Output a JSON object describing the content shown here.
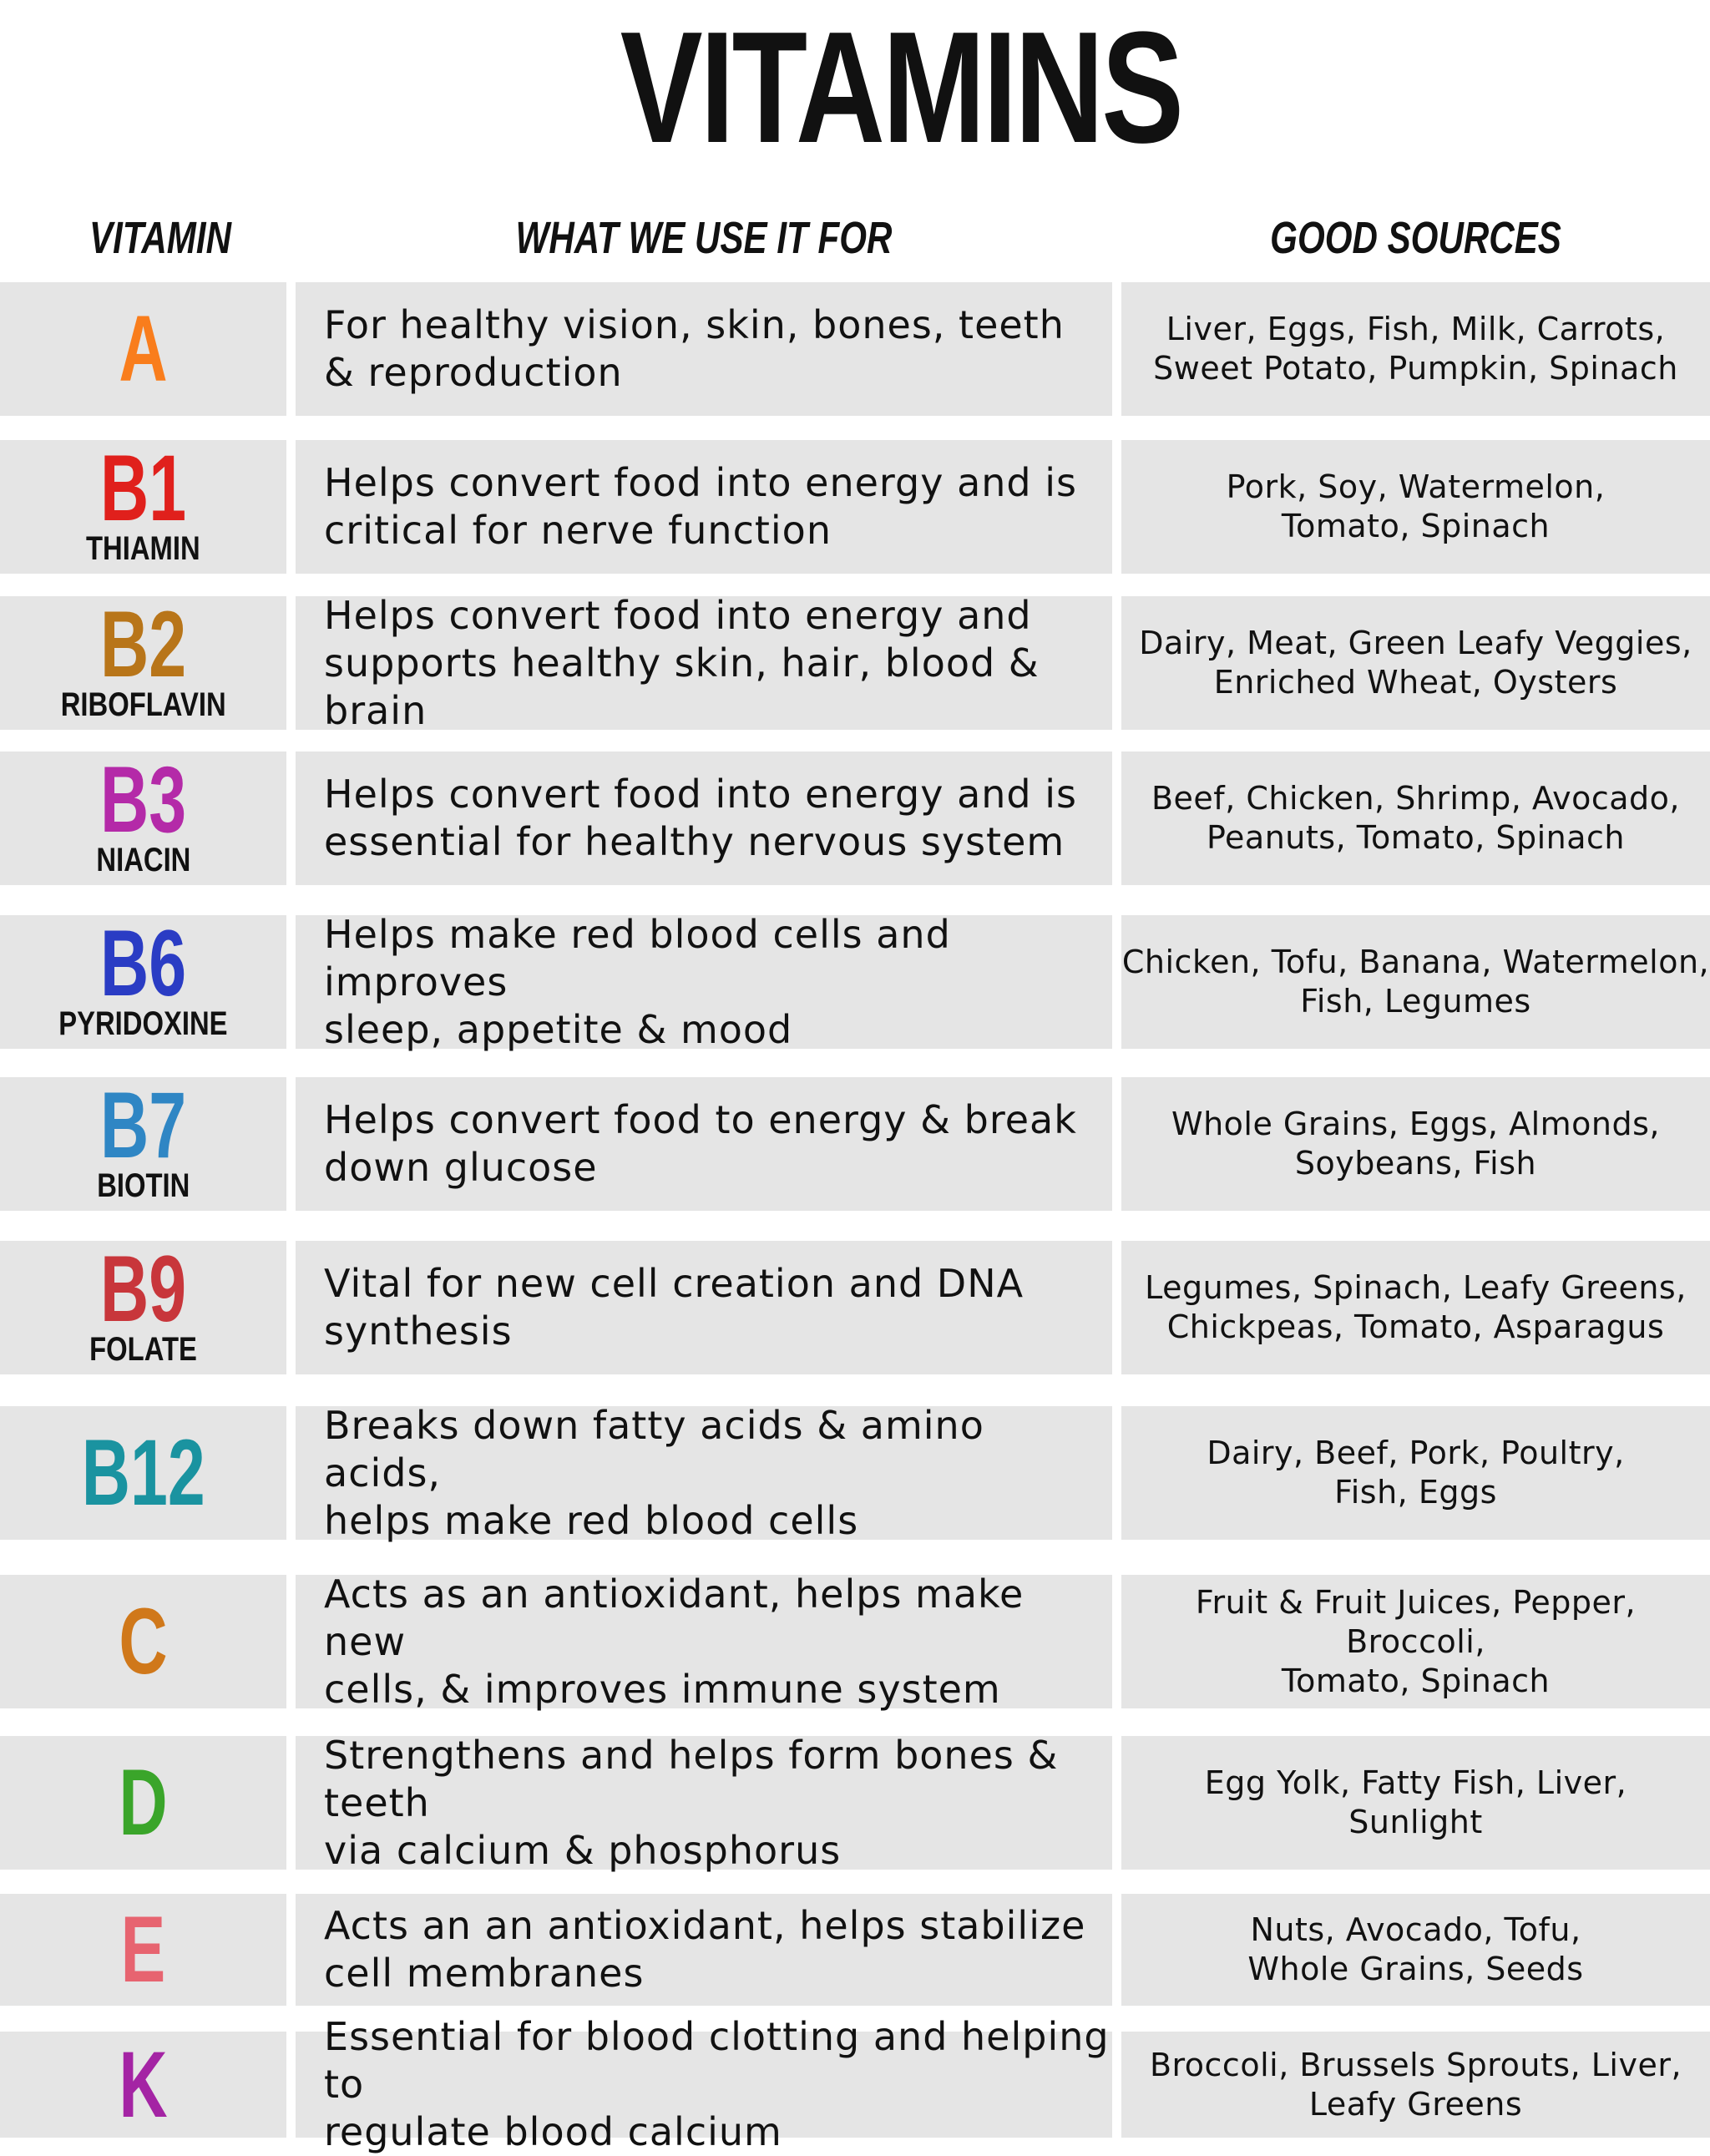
{
  "title": "VITAMINS",
  "headers": {
    "vitamin": "VITAMIN",
    "use": "WHAT WE USE IT FOR",
    "sources": "GOOD SOURCES"
  },
  "rows": [
    {
      "letter": "A",
      "name": "",
      "color": "#f97d1c",
      "use": [
        "For healthy vision, skin, bones, teeth",
        "& reproduction"
      ],
      "sources": [
        "Liver, Eggs, Fish, Milk, Carrots,",
        "Sweet Potato, Pumpkin, Spinach"
      ]
    },
    {
      "letter": "B1",
      "name": "THIAMIN",
      "color": "#e0201c",
      "use": [
        "Helps convert food into energy and is",
        "critical for nerve function"
      ],
      "sources": [
        "Pork, Soy, Watermelon,",
        "Tomato, Spinach"
      ]
    },
    {
      "letter": "B2",
      "name": "RIBOFLAVIN",
      "color": "#b87519",
      "use": [
        "Helps convert food into energy and",
        "supports healthy skin, hair, blood & brain"
      ],
      "sources": [
        "Dairy, Meat, Green Leafy Veggies,",
        "Enriched Wheat, Oysters"
      ]
    },
    {
      "letter": "B3",
      "name": "NIACIN",
      "color": "#b42aa8",
      "use": [
        "Helps convert food into energy and is",
        "essential for healthy nervous system"
      ],
      "sources": [
        "Beef, Chicken, Shrimp, Avocado,",
        "Peanuts, Tomato, Spinach"
      ]
    },
    {
      "letter": "B6",
      "name": "PYRIDOXINE",
      "color": "#2a3cc4",
      "use": [
        "Helps make red blood cells and improves",
        "sleep, appetite & mood"
      ],
      "sources": [
        "Chicken, Tofu, Banana, Watermelon,",
        "Fish, Legumes"
      ]
    },
    {
      "letter": "B7",
      "name": "BIOTIN",
      "color": "#2f86c4",
      "use": [
        "Helps convert food to energy & break",
        "down glucose"
      ],
      "sources": [
        "Whole Grains, Eggs, Almonds,",
        "Soybeans, Fish"
      ]
    },
    {
      "letter": "B9",
      "name": "FOLATE",
      "color": "#c8363b",
      "use": [
        "Vital for new cell creation and DNA",
        "synthesis"
      ],
      "sources": [
        "Legumes, Spinach, Leafy Greens,",
        "Chickpeas, Tomato, Asparagus"
      ]
    },
    {
      "letter": "B12",
      "name": "",
      "color": "#1a93a0",
      "use": [
        "Breaks down fatty acids & amino acids,",
        "helps make red blood cells"
      ],
      "sources": [
        "Dairy, Beef, Pork, Poultry,",
        "Fish, Eggs"
      ]
    },
    {
      "letter": "C",
      "name": "",
      "color": "#d0781a",
      "use": [
        "Acts as an antioxidant, helps make new",
        "cells, & improves immune system"
      ],
      "sources": [
        "Fruit & Fruit Juices, Pepper, Broccoli,",
        "Tomato, Spinach"
      ]
    },
    {
      "letter": "D",
      "name": "",
      "color": "#3aa52a",
      "use": [
        "Strengthens and helps form bones & teeth",
        "via calcium & phosphorus"
      ],
      "sources": [
        "Egg Yolk, Fatty Fish, Liver,",
        "Sunlight"
      ]
    },
    {
      "letter": "E",
      "name": "",
      "color": "#e76470",
      "use": [
        "Acts an an antioxidant, helps stabilize",
        "cell membranes"
      ],
      "sources": [
        "Nuts, Avocado, Tofu,",
        "Whole Grains, Seeds"
      ]
    },
    {
      "letter": "K",
      "name": "",
      "color": "#a424a4",
      "use": [
        "Essential for blood clotting and helping to",
        "regulate blood calcium"
      ],
      "sources": [
        "Broccoli, Brussels Sprouts, Liver,",
        "Leafy Greens"
      ]
    }
  ]
}
